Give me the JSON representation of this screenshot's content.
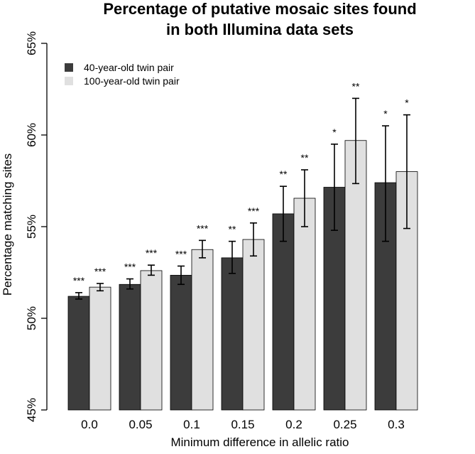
{
  "chart_data": {
    "type": "bar",
    "title_lines": [
      "Percentage of putative mosaic sites found",
      "in both Illumina data sets"
    ],
    "xlabel": "Minimum difference in allelic ratio",
    "ylabel": "Percentage matching sites",
    "categories": [
      "0.0",
      "0.05",
      "0.1",
      "0.15",
      "0.2",
      "0.25",
      "0.3"
    ],
    "ylim": [
      45,
      65
    ],
    "yticks": [
      45,
      50,
      55,
      60,
      65
    ],
    "ytick_labels": [
      "45%",
      "50%",
      "55%",
      "60%",
      "65%"
    ],
    "grid": false,
    "legend_position": "top-left",
    "series": [
      {
        "name": "40-year-old twin pair",
        "color": "#3c3c3c",
        "values": [
          51.2,
          51.85,
          52.35,
          53.3,
          55.7,
          57.15,
          57.4
        ],
        "err_low": [
          51.05,
          51.6,
          51.85,
          52.45,
          54.2,
          54.8,
          54.2
        ],
        "err_high": [
          51.4,
          52.15,
          52.85,
          54.2,
          57.2,
          59.5,
          60.5
        ],
        "significance": [
          "***",
          "***",
          "***",
          "**",
          "**",
          "*",
          "*"
        ]
      },
      {
        "name": "100-year-old twin pair",
        "color": "#e0e0e0",
        "values": [
          51.7,
          52.6,
          53.75,
          54.3,
          56.55,
          59.7,
          58.0
        ],
        "err_low": [
          51.5,
          52.35,
          53.3,
          53.4,
          55.0,
          57.35,
          54.9
        ],
        "err_high": [
          51.9,
          52.9,
          54.25,
          55.2,
          58.1,
          62.0,
          61.1
        ],
        "significance": [
          "***",
          "***",
          "***",
          "***",
          "**",
          "**",
          "*"
        ]
      }
    ]
  }
}
